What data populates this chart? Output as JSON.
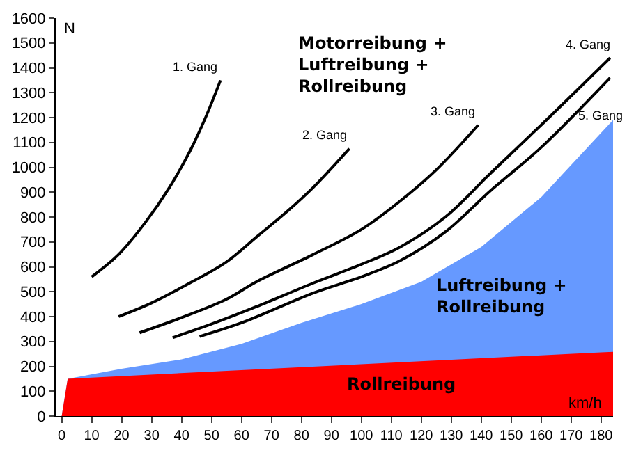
{
  "chart_data": {
    "type": "line",
    "ylabel": "N",
    "xlabel": "km/h",
    "xlim": [
      -2,
      184
    ],
    "xticks": [
      0,
      10,
      20,
      30,
      40,
      50,
      60,
      70,
      80,
      90,
      100,
      110,
      120,
      130,
      140,
      150,
      160,
      170,
      180
    ],
    "ylim": [
      0,
      1600
    ],
    "yticks": [
      0,
      100,
      200,
      300,
      400,
      500,
      600,
      700,
      800,
      900,
      1000,
      1100,
      1200,
      1300,
      1400,
      1500,
      1600
    ],
    "legend": false,
    "annotations": [
      "Motorreibung + Luftreibung + Rollreibung"
    ],
    "series": [
      {
        "name": "Luftreibung + Rollreibung",
        "type": "area",
        "color": "#6699ff",
        "x": [
          0,
          2,
          20,
          40,
          60,
          80,
          100,
          120,
          140,
          160,
          184
        ],
        "values": [
          0,
          150,
          190,
          228,
          290,
          375,
          450,
          540,
          680,
          880,
          1190
        ]
      },
      {
        "name": "Rollreibung",
        "type": "area",
        "color": "#ff0000",
        "x": [
          0,
          2,
          180,
          184
        ],
        "values": [
          0,
          150,
          256,
          258
        ]
      },
      {
        "name": "1. Gang",
        "color": "#000000",
        "x": [
          10,
          19,
          28,
          36,
          43,
          48,
          53
        ],
        "values": [
          560,
          650,
          780,
          920,
          1070,
          1200,
          1350
        ]
      },
      {
        "name": "2. Gang",
        "color": "#000000",
        "x": [
          19,
          30,
          42,
          55,
          65,
          75,
          84,
          96
        ],
        "values": [
          400,
          455,
          530,
          620,
          720,
          820,
          920,
          1075
        ]
      },
      {
        "name": "3. Gang",
        "color": "#000000",
        "x": [
          26,
          42,
          55,
          65,
          84,
          100,
          113,
          125,
          139
        ],
        "values": [
          335,
          405,
          470,
          540,
          650,
          750,
          865,
          990,
          1170
        ]
      },
      {
        "name": "4. Gang",
        "color": "#000000",
        "x": [
          37,
          50,
          65,
          84,
          100,
          113,
          128,
          143,
          160,
          183
        ],
        "values": [
          315,
          370,
          440,
          535,
          610,
          680,
          800,
          975,
          1170,
          1440
        ]
      },
      {
        "name": "5. Gang",
        "color": "#000000",
        "x": [
          46,
          60,
          84,
          100,
          113,
          128,
          143,
          160,
          183
        ],
        "values": [
          320,
          375,
          495,
          560,
          625,
          740,
          905,
          1080,
          1360
        ]
      }
    ]
  }
}
